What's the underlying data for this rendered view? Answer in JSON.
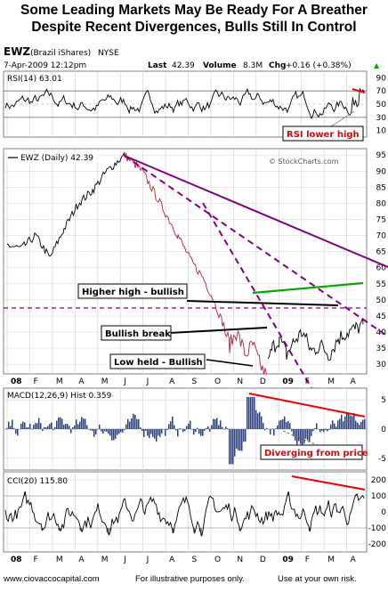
{
  "title_line1": "Some Leading Markets May Be Ready For A Breather",
  "title_line2": "Despite Recent Divergences, Bulls Still In Control",
  "header": {
    "symbol": "EWZ",
    "name": "(Brazil iShares)",
    "exchange": "NYSE",
    "date": "7-Apr-2009 12:12pm",
    "last_label": "Last",
    "last_value": "42.39",
    "volume_label": "Volume",
    "volume_value": "8.3M",
    "chg_label": "Chg",
    "chg_value": "+0.16 (+0.38%)",
    "chg_arrow": "▲",
    "watermark": "© StockCharts.com"
  },
  "footer": {
    "left": "www.ciovaccocapital.com",
    "mid": "For illustrative purposes only.",
    "right": "Use at your own risk."
  },
  "colors": {
    "price_black": "#000000",
    "price_red": "#b0203a",
    "purple": "#800080",
    "green": "#00aa00",
    "red": "#ee0000",
    "macd_blue": "#1f3f9f",
    "cci_fill": "#9a7b7b",
    "grid": "#d6d6d6"
  },
  "chart_data": [
    {
      "type": "line",
      "panel": "RSI",
      "label": "RSI(14) 63.01",
      "yticks": [
        10,
        30,
        50,
        70,
        90
      ],
      "ylim": [
        0,
        100
      ],
      "guides": [
        30,
        70
      ],
      "annotation": "RSI lower high",
      "x_months": [
        "08",
        "F",
        "M",
        "A",
        "M",
        "J",
        "J",
        "A",
        "S",
        "O",
        "N",
        "D",
        "09",
        "F",
        "M",
        "A"
      ]
    },
    {
      "type": "line",
      "panel": "Price",
      "label": "EWZ (Daily) 42.39",
      "last": 42.39,
      "yticks": [
        30,
        35,
        40,
        45,
        50,
        55,
        60,
        65,
        70,
        75,
        80,
        85,
        90,
        95
      ],
      "ylim": [
        27,
        97
      ],
      "dashed_level": 37,
      "peak": 95,
      "low": 27,
      "annotations": [
        "Higher high - bullish",
        "Bullish break",
        "Low held - Bullish"
      ],
      "x_months": [
        "08",
        "F",
        "M",
        "A",
        "M",
        "J",
        "J",
        "A",
        "S",
        "O",
        "N",
        "D",
        "09",
        "F",
        "M",
        "A"
      ]
    },
    {
      "type": "bar",
      "panel": "MACD",
      "label": "MACD(12,26,9) Hist 0.359",
      "yticks": [
        -5,
        0,
        5
      ],
      "ylim": [
        -7,
        7
      ],
      "annotation": "Diverging from price"
    },
    {
      "type": "area",
      "panel": "CCI",
      "label": "CCI(20) 115.80",
      "yticks": [
        -200,
        -100,
        0,
        100,
        200
      ],
      "ylim": [
        -250,
        250
      ],
      "x_months": [
        "08",
        "F",
        "M",
        "A",
        "M",
        "J",
        "J",
        "A",
        "S",
        "O",
        "N",
        "D",
        "09",
        "F",
        "M",
        "A"
      ]
    }
  ]
}
